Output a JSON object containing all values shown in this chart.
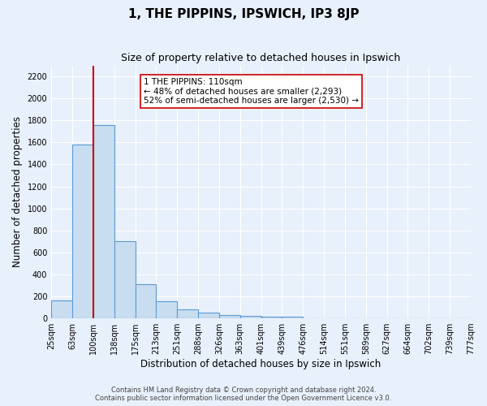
{
  "title": "1, THE PIPPINS, IPSWICH, IP3 8JP",
  "subtitle": "Size of property relative to detached houses in Ipswich",
  "xlabel": "Distribution of detached houses by size in Ipswich",
  "ylabel": "Number of detached properties",
  "bin_labels": [
    "25sqm",
    "63sqm",
    "100sqm",
    "138sqm",
    "175sqm",
    "213sqm",
    "251sqm",
    "288sqm",
    "326sqm",
    "363sqm",
    "401sqm",
    "439sqm",
    "476sqm",
    "514sqm",
    "551sqm",
    "589sqm",
    "627sqm",
    "664sqm",
    "702sqm",
    "739sqm",
    "777sqm"
  ],
  "counts": [
    160,
    1580,
    1760,
    700,
    310,
    155,
    85,
    50,
    30,
    20,
    18,
    15,
    0,
    0,
    0,
    0,
    0,
    0,
    0,
    0
  ],
  "bar_color": "#c9ddf0",
  "bar_edge_color": "#5b9bd5",
  "property_bin_index": 2,
  "vline_color": "#cc0000",
  "annotation_text": "1 THE PIPPINS: 110sqm\n← 48% of detached houses are smaller (2,293)\n52% of semi-detached houses are larger (2,530) →",
  "annotation_box_color": "#ffffff",
  "annotation_box_edge_color": "#cc0000",
  "ylim": [
    0,
    2300
  ],
  "yticks": [
    0,
    200,
    400,
    600,
    800,
    1000,
    1200,
    1400,
    1600,
    1800,
    2000,
    2200
  ],
  "background_color": "#e8f0fb",
  "plot_bg_color": "#e8f0fb",
  "footer_line1": "Contains HM Land Registry data © Crown copyright and database right 2024.",
  "footer_line2": "Contains public sector information licensed under the Open Government Licence v3.0.",
  "title_fontsize": 11,
  "subtitle_fontsize": 9,
  "label_fontsize": 8.5,
  "tick_fontsize": 7,
  "footer_fontsize": 6
}
